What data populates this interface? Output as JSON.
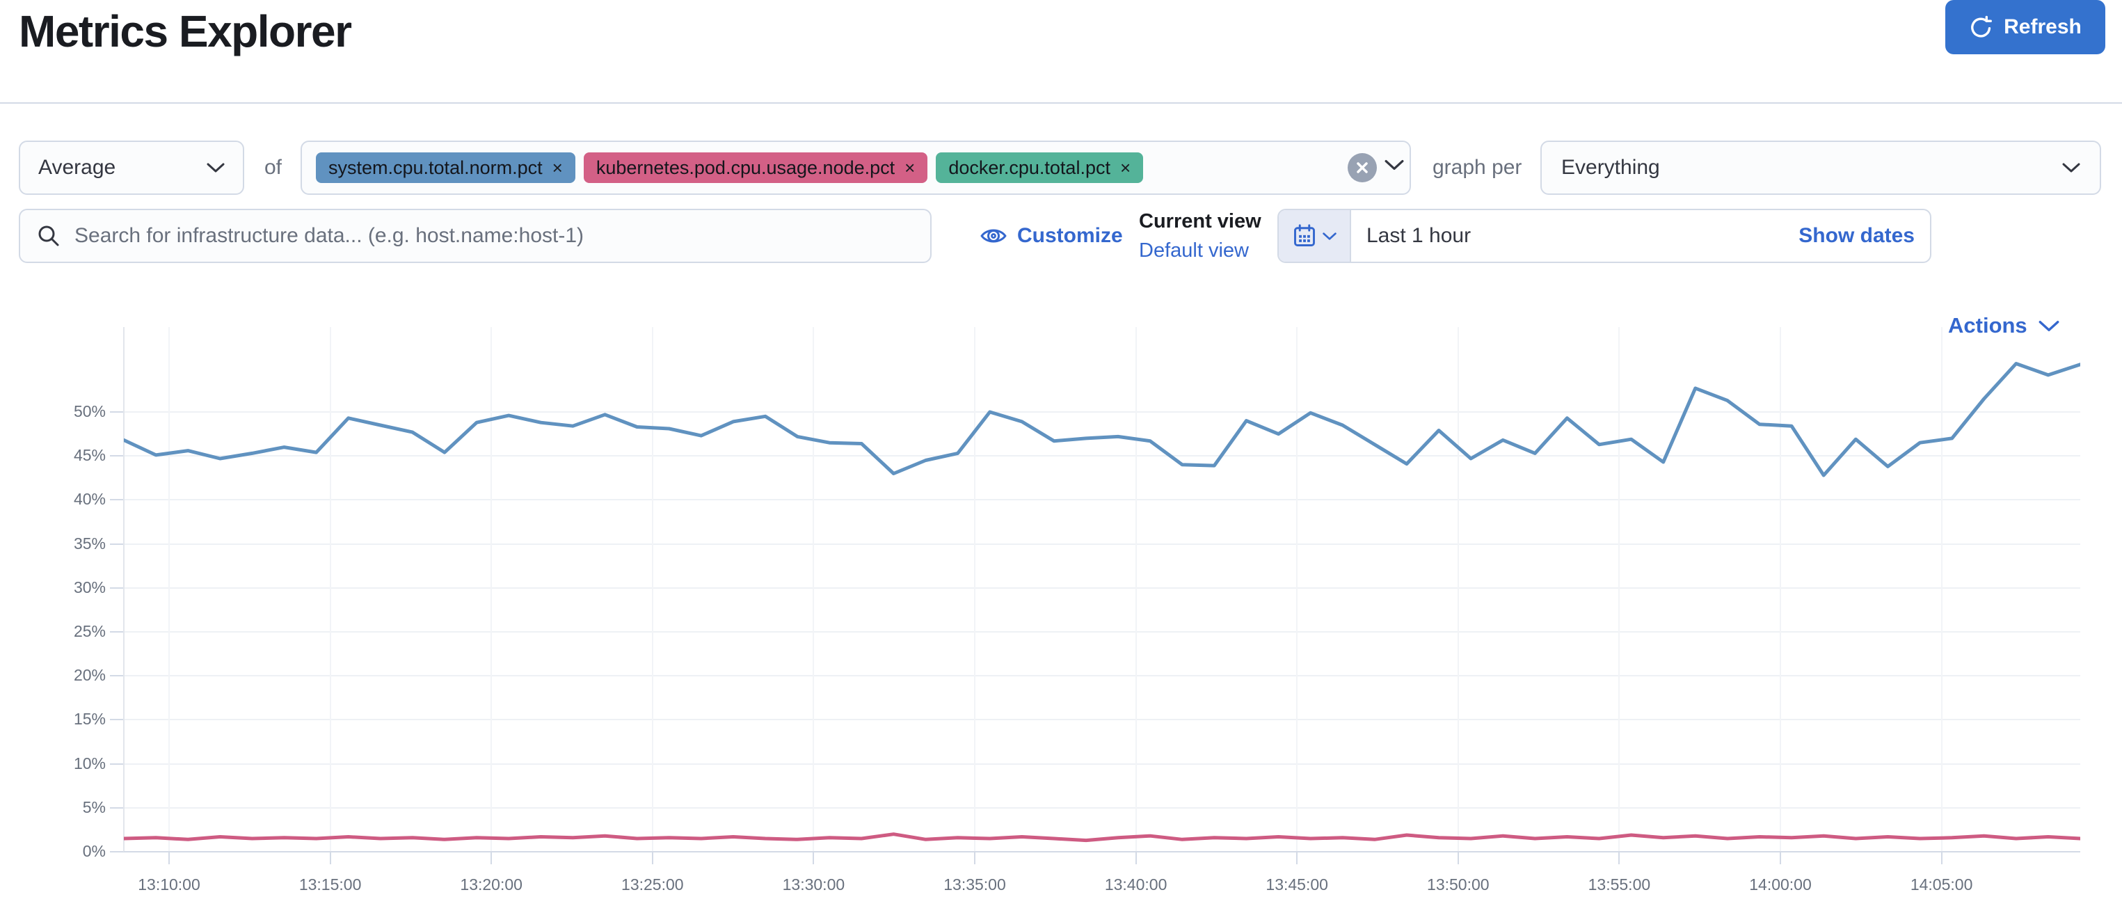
{
  "page": {
    "title": "Metrics Explorer"
  },
  "toolbar": {
    "aggregation": {
      "value": "Average"
    },
    "of_label": "of",
    "metrics": [
      {
        "label": "system.cpu.total.norm.pct",
        "color": "#6092C0"
      },
      {
        "label": "kubernetes.pod.cpu.usage.node.pct",
        "color": "#D36086"
      },
      {
        "label": "docker.cpu.total.pct",
        "color": "#54B399"
      }
    ],
    "remove_glyph": "×",
    "graph_per_label": "graph per",
    "group_by": {
      "value": "Everything"
    }
  },
  "search": {
    "placeholder": "Search for infrastructure data... (e.g. host.name:host-1)"
  },
  "view_controls": {
    "customize_label": "Customize",
    "current_view_label": "Current view",
    "view_name": "Default view"
  },
  "time_picker": {
    "range_label": "Last 1 hour",
    "show_dates_label": "Show dates",
    "refresh_label": "Refresh"
  },
  "actions": {
    "label": "Actions"
  },
  "colors": {
    "link_blue": "#3467ce",
    "button_blue": "#3472ce",
    "pill_clear_gray": "#98a2b3",
    "axis_text": "#68707d",
    "grid_h": "#eef1f5",
    "grid_v": "#f2f4f7",
    "axis_line": "#d3dae6"
  },
  "chart_data": {
    "type": "line",
    "title": "",
    "xlabel": "",
    "ylabel": "",
    "ylim": [
      0,
      57
    ],
    "grid": true,
    "legend": false,
    "y_ticks": [
      "0%",
      "5%",
      "10%",
      "15%",
      "20%",
      "25%",
      "30%",
      "35%",
      "40%",
      "45%",
      "50%"
    ],
    "x_ticks": [
      "13:10:00",
      "13:15:00",
      "13:20:00",
      "13:25:00",
      "13:30:00",
      "13:35:00",
      "13:40:00",
      "13:45:00",
      "13:50:00",
      "13:55:00",
      "14:00:00",
      "14:05:00"
    ],
    "x_interval": "1 minute",
    "series": [
      {
        "name": "avg of system.cpu.total.norm.pct",
        "color": "#6092C0",
        "values": [
          46.8,
          45.1,
          45.6,
          44.7,
          45.3,
          46.0,
          45.4,
          49.3,
          48.5,
          47.7,
          45.4,
          48.8,
          49.6,
          48.8,
          48.4,
          49.7,
          48.3,
          48.1,
          47.3,
          48.9,
          49.5,
          47.2,
          46.5,
          46.4,
          43.0,
          44.5,
          45.3,
          50.0,
          48.9,
          46.7,
          47.0,
          47.2,
          46.7,
          44.0,
          43.9,
          49.0,
          47.5,
          49.9,
          48.5,
          46.3,
          44.1,
          47.9,
          44.7,
          46.8,
          45.3,
          49.3,
          46.3,
          46.9,
          44.3,
          52.7,
          51.3,
          48.6,
          48.4,
          42.8,
          46.9,
          43.8,
          46.5,
          47.0,
          51.5,
          55.5,
          54.2,
          55.4
        ]
      },
      {
        "name": "avg of kubernetes.pod.cpu.usage.node.pct",
        "color": "#CE5B82",
        "values": [
          1.5,
          1.6,
          1.4,
          1.7,
          1.5,
          1.6,
          1.5,
          1.7,
          1.5,
          1.6,
          1.4,
          1.6,
          1.5,
          1.7,
          1.6,
          1.8,
          1.5,
          1.6,
          1.5,
          1.7,
          1.5,
          1.4,
          1.6,
          1.5,
          2.0,
          1.4,
          1.6,
          1.5,
          1.7,
          1.5,
          1.3,
          1.6,
          1.8,
          1.4,
          1.6,
          1.5,
          1.7,
          1.5,
          1.6,
          1.4,
          1.9,
          1.6,
          1.5,
          1.8,
          1.5,
          1.7,
          1.5,
          1.9,
          1.6,
          1.8,
          1.5,
          1.7,
          1.6,
          1.8,
          1.5,
          1.7,
          1.5,
          1.6,
          1.8,
          1.5,
          1.7,
          1.5
        ]
      }
    ]
  }
}
